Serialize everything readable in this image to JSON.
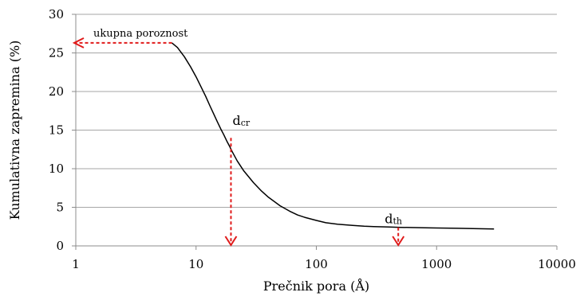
{
  "chart_data": {
    "type": "line",
    "xlabel": "Prečnik pora (Å)",
    "ylabel": "Kumulativna zapremina (%)",
    "x_scale": "log",
    "xlim": [
      1,
      10000
    ],
    "ylim": [
      0,
      30
    ],
    "x_ticks": [
      1,
      10,
      100,
      1000,
      10000
    ],
    "x_tick_labels": [
      "1",
      "10",
      "100",
      "1000",
      "10000"
    ],
    "y_ticks": [
      0,
      5,
      10,
      15,
      20,
      25,
      30
    ],
    "y_tick_labels": [
      "0",
      "5",
      "10",
      "15",
      "20",
      "25",
      "30"
    ],
    "grid": "horizontal",
    "line_color": "#000000",
    "annotation_color": "#e01b1b",
    "series": [
      {
        "x": [
          6.3,
          7,
          8,
          9,
          10,
          11,
          12,
          13,
          14,
          15,
          16,
          17,
          18,
          19,
          20,
          22,
          25,
          30,
          35,
          40,
          50,
          60,
          70,
          80,
          100,
          120,
          150,
          200,
          250,
          300,
          400,
          500,
          600,
          800,
          1000,
          1500,
          2000,
          3000
        ],
        "y": [
          26.3,
          25.7,
          24.5,
          23.2,
          21.9,
          20.6,
          19.4,
          18.2,
          17.1,
          16.1,
          15.2,
          14.4,
          13.6,
          12.9,
          12.2,
          11.0,
          9.7,
          8.2,
          7.1,
          6.3,
          5.2,
          4.5,
          4.0,
          3.7,
          3.3,
          3.0,
          2.8,
          2.65,
          2.55,
          2.5,
          2.45,
          2.4,
          2.38,
          2.35,
          2.32,
          2.28,
          2.25,
          2.2
        ]
      }
    ],
    "annotations": {
      "total_porosity": {
        "text": "ukupna poroznost",
        "x": 6.3,
        "y": 26.3
      },
      "dcr": {
        "main": "d",
        "sub": "cr",
        "x": 19.5,
        "y": 14.0
      },
      "dth": {
        "main": "d",
        "sub": "th",
        "x": 480,
        "y": 2.4
      }
    }
  }
}
